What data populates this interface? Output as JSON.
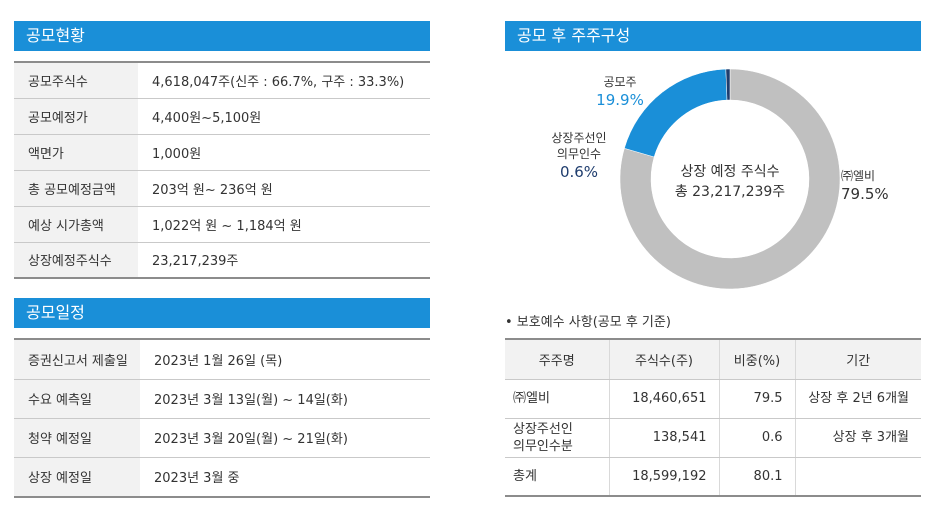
{
  "offering": {
    "title": "공모현황",
    "rows": [
      {
        "label": "공모주식수",
        "value": "4,618,047주(신주 : 66.7%, 구주 : 33.3%)"
      },
      {
        "label": "공모예정가",
        "value": "4,400원~5,100원"
      },
      {
        "label": "액면가",
        "value": "1,000원"
      },
      {
        "label": "총 공모예정금액",
        "value": "203억 원~ 236억 원"
      },
      {
        "label": "예상 시가총액",
        "value": "1,022억 원 ~ 1,184억 원"
      },
      {
        "label": "상장예정주식수",
        "value": "23,217,239주"
      }
    ]
  },
  "schedule": {
    "title": "공모일정",
    "rows": [
      {
        "label": "증권신고서 제출일",
        "value": "2023년 1월 26일 (목)"
      },
      {
        "label": "수요 예측일",
        "value": "2023년 3월 13일(월) ~ 14일(화)"
      },
      {
        "label": "청약 예정일",
        "value": "2023년 3월 20일(월) ~ 21일(화)"
      },
      {
        "label": "상장 예정일",
        "value": "2023년 3월 중"
      }
    ]
  },
  "composition": {
    "title": "공모 후 주주구성",
    "center_line1": "상장 예정 주식수",
    "center_line2": "총 23,217,239주",
    "labels": {
      "public_name": "공모주",
      "public_value": "19.9%",
      "lockup_name_1": "상장주선인",
      "lockup_name_2": "의무인수",
      "lockup_value": "0.6%",
      "holder_name": "㈜엘비",
      "holder_value": "79.5%"
    }
  },
  "chart_data": {
    "type": "pie",
    "title": "공모 후 주주구성",
    "center_text": [
      "상장 예정 주식수",
      "총 23,217,239주"
    ],
    "slices": [
      {
        "label": "㈜엘비",
        "value": 79.5,
        "color": "#c0c0c0"
      },
      {
        "label": "공모주",
        "value": 19.9,
        "color": "#1a8fd8"
      },
      {
        "label": "상장주선인 의무인수",
        "value": 0.6,
        "color": "#1f3d6e"
      }
    ]
  },
  "lockup": {
    "note": "• 보호예수 사항(공모 후 기준)",
    "headers": [
      "주주명",
      "주식수(주)",
      "비중(%)",
      "기간"
    ],
    "rows": [
      {
        "name": "㈜엘비",
        "name2": "",
        "shares": "18,460,651",
        "ratio": "79.5",
        "period": "상장 후 2년 6개월"
      },
      {
        "name": "상장주선인",
        "name2": "의무인수분",
        "shares": "138,541",
        "ratio": "0.6",
        "period": "상장 후 3개월"
      },
      {
        "name": "총계",
        "name2": "",
        "shares": "18,599,192",
        "ratio": "80.1",
        "period": ""
      }
    ]
  },
  "colors": {
    "accent": "#1a8fd8",
    "dark": "#1f3d6e",
    "grey": "#c0c0c0"
  }
}
